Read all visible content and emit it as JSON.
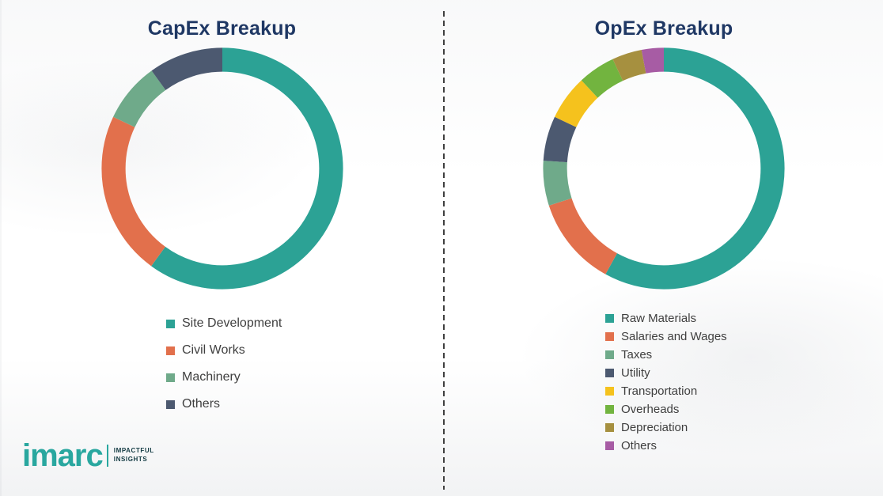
{
  "chart_data": [
    {
      "type": "pie",
      "donut": true,
      "title": "CapEx Breakup",
      "labels": [
        "Site Development",
        "Civil Works",
        "Machinery",
        "Others"
      ],
      "values": [
        60,
        22,
        8,
        10
      ],
      "colors": [
        "#2CA295",
        "#E2704C",
        "#6FAA8A",
        "#4C5970"
      ],
      "legend_position": "bottom-left",
      "start_angle_deg": 0,
      "direction": "clockwise"
    },
    {
      "type": "pie",
      "donut": true,
      "title": "OpEx Breakup",
      "labels": [
        "Raw Materials",
        "Salaries and Wages",
        "Taxes",
        "Utility",
        "Transportation",
        "Overheads",
        "Depreciation",
        "Others"
      ],
      "values": [
        58,
        12,
        6,
        6,
        6,
        5,
        4,
        3
      ],
      "colors": [
        "#2CA295",
        "#E2704C",
        "#6FAA8A",
        "#4C5970",
        "#F5C21D",
        "#72B43F",
        "#A6903F",
        "#A75CA4"
      ],
      "legend_position": "bottom-left",
      "start_angle_deg": 0,
      "direction": "clockwise"
    }
  ],
  "titles": {
    "left": "CapEx Breakup",
    "right": "OpEx Breakup"
  },
  "logo": {
    "brand": "imarc",
    "tagline_line1": "IMPACTFUL",
    "tagline_line2": "INSIGHTS",
    "brand_color": "#29A79F"
  },
  "style": {
    "title_color": "#1F3864",
    "legend_text_color": "#3F3F3F",
    "divider_color": "#3F3F3F"
  }
}
